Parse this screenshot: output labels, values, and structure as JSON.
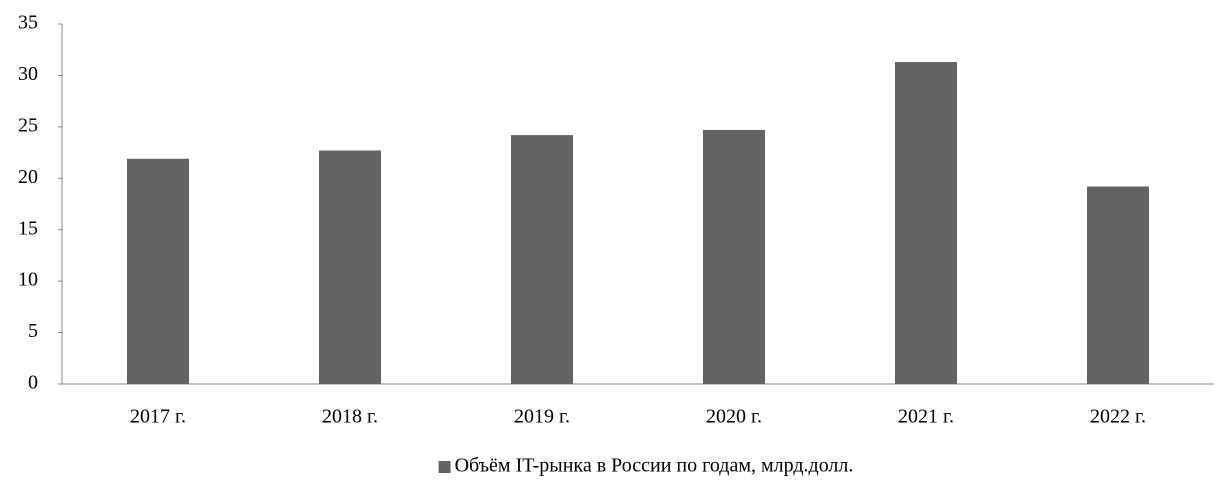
{
  "chart_data": {
    "type": "bar",
    "categories": [
      "2017 г.",
      "2018 г.",
      "2019 г.",
      "2020 г.",
      "2021 г.",
      "2022 г."
    ],
    "series": [
      {
        "name": "Объём IT-рынка в России по годам, млрд.долл.",
        "color": "#636363",
        "values": [
          21.9,
          22.7,
          24.2,
          24.7,
          31.3,
          19.2
        ]
      }
    ],
    "ylim": [
      0,
      35
    ],
    "yticks": [
      0,
      5,
      10,
      15,
      20,
      25,
      30,
      35
    ],
    "grid": false,
    "legend": "bottom"
  }
}
